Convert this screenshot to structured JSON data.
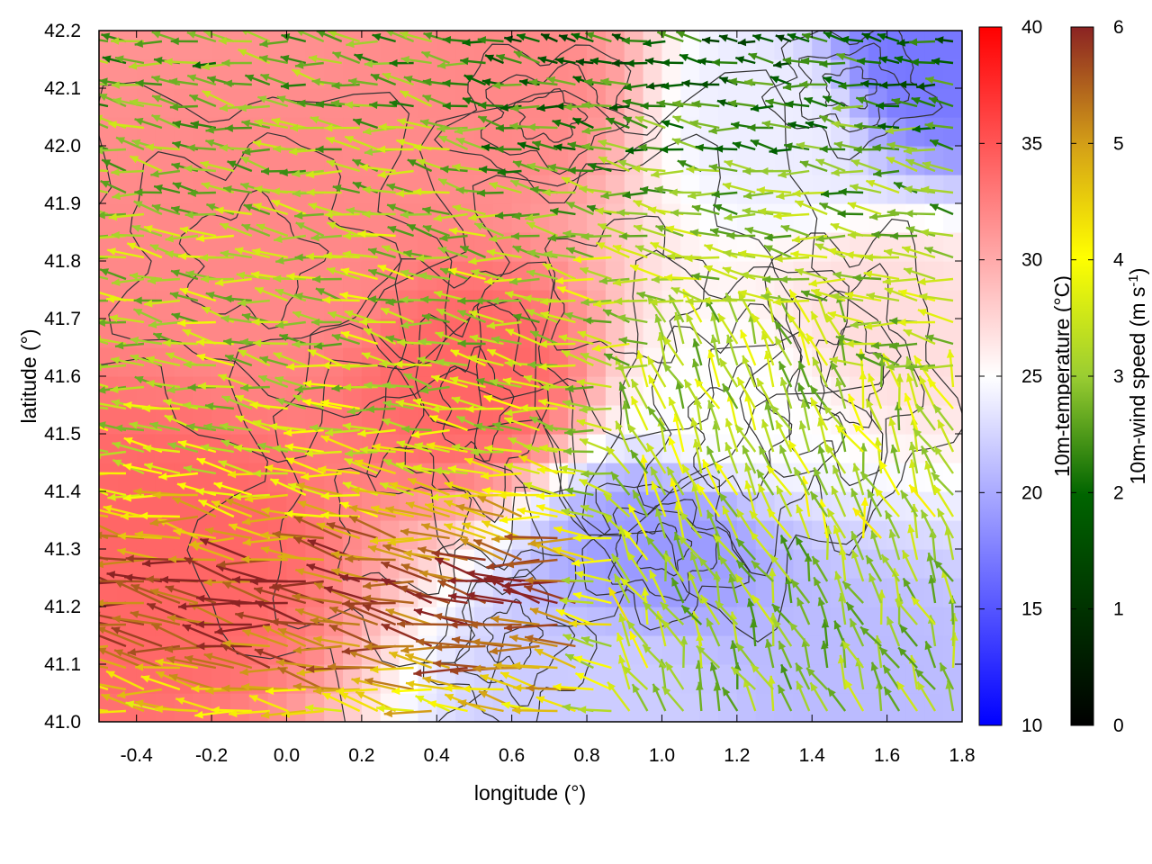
{
  "chart_data": {
    "type": "heatmap",
    "overlays": [
      "vector-field",
      "contour"
    ],
    "title": "",
    "xlabel": "longitude (°)",
    "ylabel": "latitude (°)",
    "xlim": [
      -0.5,
      1.8
    ],
    "ylim": [
      41.0,
      42.2
    ],
    "x_ticks": [
      "-0.4",
      "-0.2",
      "0.0",
      "0.2",
      "0.4",
      "0.6",
      "0.8",
      "1.0",
      "1.2",
      "1.4",
      "1.6",
      "1.8"
    ],
    "y_ticks": [
      "41.0",
      "41.1",
      "41.2",
      "41.3",
      "41.4",
      "41.5",
      "41.6",
      "41.7",
      "41.8",
      "41.9",
      "42.0",
      "42.1",
      "42.2"
    ],
    "temperature_colorbar": {
      "label": "10m-temperature (°C)",
      "range": [
        10,
        40
      ],
      "ticks": [
        "10",
        "15",
        "20",
        "25",
        "30",
        "35",
        "40"
      ],
      "colors": [
        "#0000ff",
        "#ffffff",
        "#ff0000"
      ]
    },
    "wind_colorbar": {
      "label": "10m-wind speed (m s-1)",
      "label_main": "10m-wind speed (m s",
      "label_sup": "-1",
      "label_end": ")",
      "range": [
        0,
        6
      ],
      "ticks": [
        "0",
        "1",
        "2",
        "3",
        "4",
        "5",
        "6"
      ],
      "colors": [
        "#000000",
        "#006400",
        "#9acd32",
        "#ffff00",
        "#d4a017",
        "#8b2323"
      ]
    },
    "temperature_field": {
      "description_regions": [
        {
          "lon": -0.3,
          "lat": 41.3,
          "value": 34
        },
        {
          "lon": 0.0,
          "lat": 41.8,
          "value": 32
        },
        {
          "lon": 0.5,
          "lat": 41.6,
          "value": 34
        },
        {
          "lon": 0.6,
          "lat": 42.1,
          "value": 32
        },
        {
          "lon": 0.9,
          "lat": 41.05,
          "value": 22
        },
        {
          "lon": 1.0,
          "lat": 41.3,
          "value": 19
        },
        {
          "lon": 1.5,
          "lat": 41.05,
          "value": 21
        },
        {
          "lon": 1.2,
          "lat": 41.55,
          "value": 25
        },
        {
          "lon": 1.3,
          "lat": 42.05,
          "value": 24
        },
        {
          "lon": 1.7,
          "lat": 42.15,
          "value": 17
        },
        {
          "lon": 1.6,
          "lat": 41.7,
          "value": 27
        }
      ]
    }
  }
}
